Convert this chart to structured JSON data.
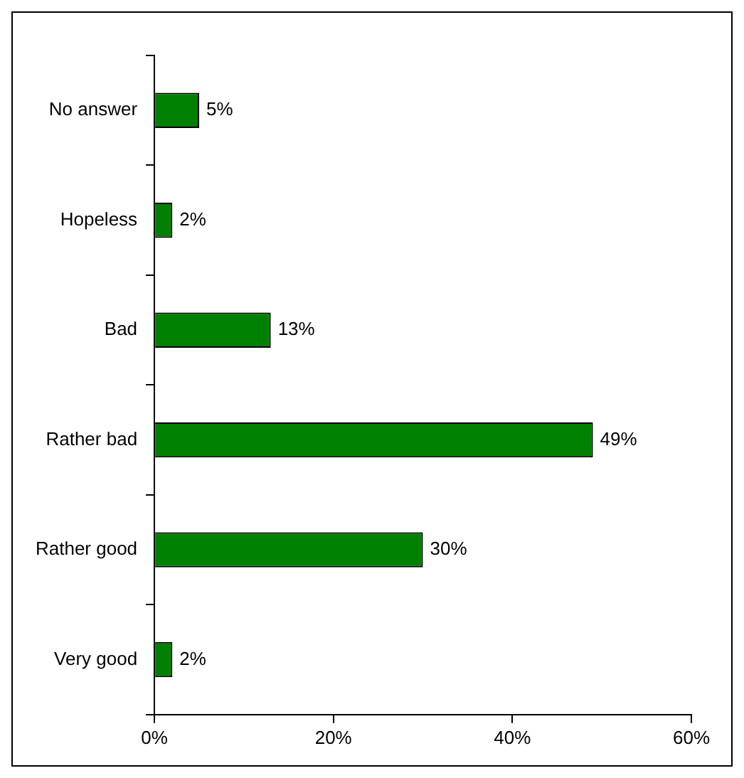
{
  "chart_data": {
    "type": "bar",
    "orientation": "horizontal",
    "categories": [
      "No answer",
      "Hopeless",
      "Bad",
      "Rather bad",
      "Rather good",
      "Very good"
    ],
    "values": [
      5,
      2,
      13,
      49,
      30,
      2
    ],
    "value_labels": [
      "5%",
      "2%",
      "13%",
      "49%",
      "30%",
      "2%"
    ],
    "color": "#008000",
    "xlim": [
      0,
      60
    ],
    "xticks": [
      {
        "value": 0,
        "label": "0%"
      },
      {
        "value": 20,
        "label": "20%"
      },
      {
        "value": 40,
        "label": "40%"
      },
      {
        "value": 60,
        "label": "60%"
      }
    ],
    "grid": false,
    "legend": false
  }
}
